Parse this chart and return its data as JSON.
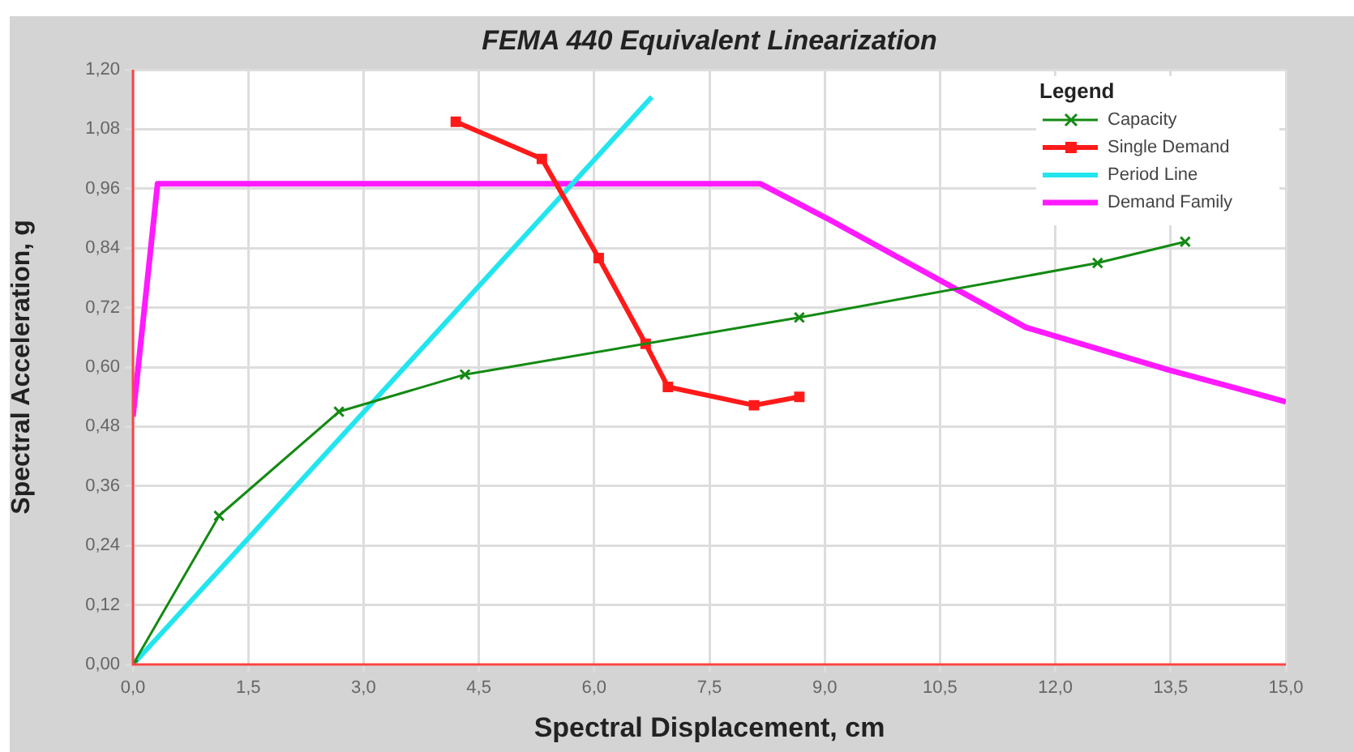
{
  "chart_data": {
    "type": "line",
    "title": "FEMA 440 Equivalent Linearization",
    "xlabel": "Spectral Displacement, cm",
    "ylabel": "Spectral Acceleration, g",
    "legend_title": "Legend",
    "legend": "top right",
    "grid": true,
    "line_style": "solid",
    "xlim": [
      0,
      15
    ],
    "xticks": [
      {
        "value": 0,
        "label": "0,0"
      },
      {
        "value": 1.5,
        "label": "1,5"
      },
      {
        "value": 3,
        "label": "3,0"
      },
      {
        "value": 4.5,
        "label": "4,5"
      },
      {
        "value": 6,
        "label": "6,0"
      },
      {
        "value": 7.5,
        "label": "7,5"
      },
      {
        "value": 9,
        "label": "9,0"
      },
      {
        "value": 10.5,
        "label": "10,5"
      },
      {
        "value": 12,
        "label": "12,0"
      },
      {
        "value": 13.5,
        "label": "13,5"
      },
      {
        "value": 15,
        "label": "15,0"
      }
    ],
    "ylim": [
      0,
      1.2
    ],
    "yticks": [
      {
        "value": 0,
        "label": "0,00"
      },
      {
        "value": 0.12,
        "label": "0,12"
      },
      {
        "value": 0.24,
        "label": "0,24"
      },
      {
        "value": 0.36,
        "label": "0,36"
      },
      {
        "value": 0.48,
        "label": "0,48"
      },
      {
        "value": 0.6,
        "label": "0,60"
      },
      {
        "value": 0.72,
        "label": "0,72"
      },
      {
        "value": 0.84,
        "label": "0,84"
      },
      {
        "value": 0.96,
        "label": "0,96"
      },
      {
        "value": 1.08,
        "label": "1,08"
      },
      {
        "value": 1.2,
        "label": "1,20"
      }
    ],
    "series": [
      {
        "name": "Capacity",
        "color": "#138a13",
        "marker": "cross",
        "x": [
          0,
          1.12,
          2.68,
          4.32,
          8.67,
          12.55,
          13.69
        ],
        "values": [
          0,
          0.3,
          0.51,
          0.585,
          0.7,
          0.81,
          0.853
        ]
      },
      {
        "name": "Single Demand",
        "color": "#ff1a1a",
        "marker": "square",
        "x": [
          4.2,
          5.32,
          6.06,
          6.67,
          6.96,
          8.08,
          8.67
        ],
        "values": [
          1.095,
          1.02,
          0.82,
          0.647,
          0.56,
          0.523,
          0.54
        ]
      },
      {
        "name": "Period Line",
        "color": "#22e5ee",
        "marker": "none",
        "x": [
          0,
          6.75
        ],
        "values": [
          0,
          1.145
        ]
      },
      {
        "name": "Demand Family",
        "color": "#ff1aff",
        "marker": "none",
        "x": [
          0,
          0.32,
          8.16,
          9.03,
          11.62,
          13.46,
          15
        ],
        "values": [
          0.5,
          0.97,
          0.97,
          0.9,
          0.68,
          0.595,
          0.53
        ]
      }
    ]
  }
}
